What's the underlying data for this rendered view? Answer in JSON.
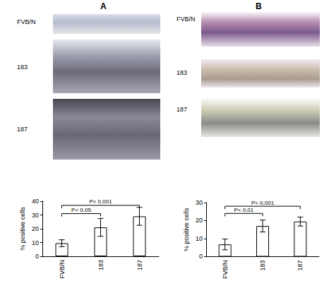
{
  "figure": {
    "panels": [
      {
        "label": "A",
        "image_labels": [
          "FVB/N",
          "183",
          "187"
        ]
      },
      {
        "label": "B",
        "image_labels": [
          "FVB/N",
          "183",
          "187"
        ]
      }
    ]
  },
  "chart_data": [
    {
      "type": "bar",
      "ylabel": "% positive cells",
      "categories": [
        "FVB/N",
        "183",
        "187"
      ],
      "values": [
        9.5,
        21,
        29
      ],
      "errors": [
        2.5,
        6.5,
        6.5
      ],
      "color": "#ffffff",
      "ylim": [
        0,
        40
      ],
      "yticks": [
        0,
        10,
        20,
        30,
        40
      ],
      "grid": false,
      "annotations": [
        {
          "text": "P< 0,05",
          "from": "FVB/N",
          "to": "183",
          "y": 31
        },
        {
          "text": "P< 0,001",
          "from": "FVB/N",
          "to": "187",
          "y": 37
        }
      ]
    },
    {
      "type": "bar",
      "ylabel": "% positive cells",
      "categories": [
        "FVB/N",
        "183",
        "187"
      ],
      "values": [
        6.8,
        17,
        19.5
      ],
      "errors": [
        3,
        3.3,
        2.5
      ],
      "color": "#ffffff",
      "ylim": [
        0,
        30
      ],
      "yticks": [
        0,
        10,
        20,
        30
      ],
      "grid": false,
      "annotations": [
        {
          "text": "P< 0,01",
          "from": "FVB/N",
          "to": "183",
          "y": 24
        },
        {
          "text": "P< 0,001",
          "from": "FVB/N",
          "to": "187",
          "y": 28
        }
      ]
    }
  ]
}
